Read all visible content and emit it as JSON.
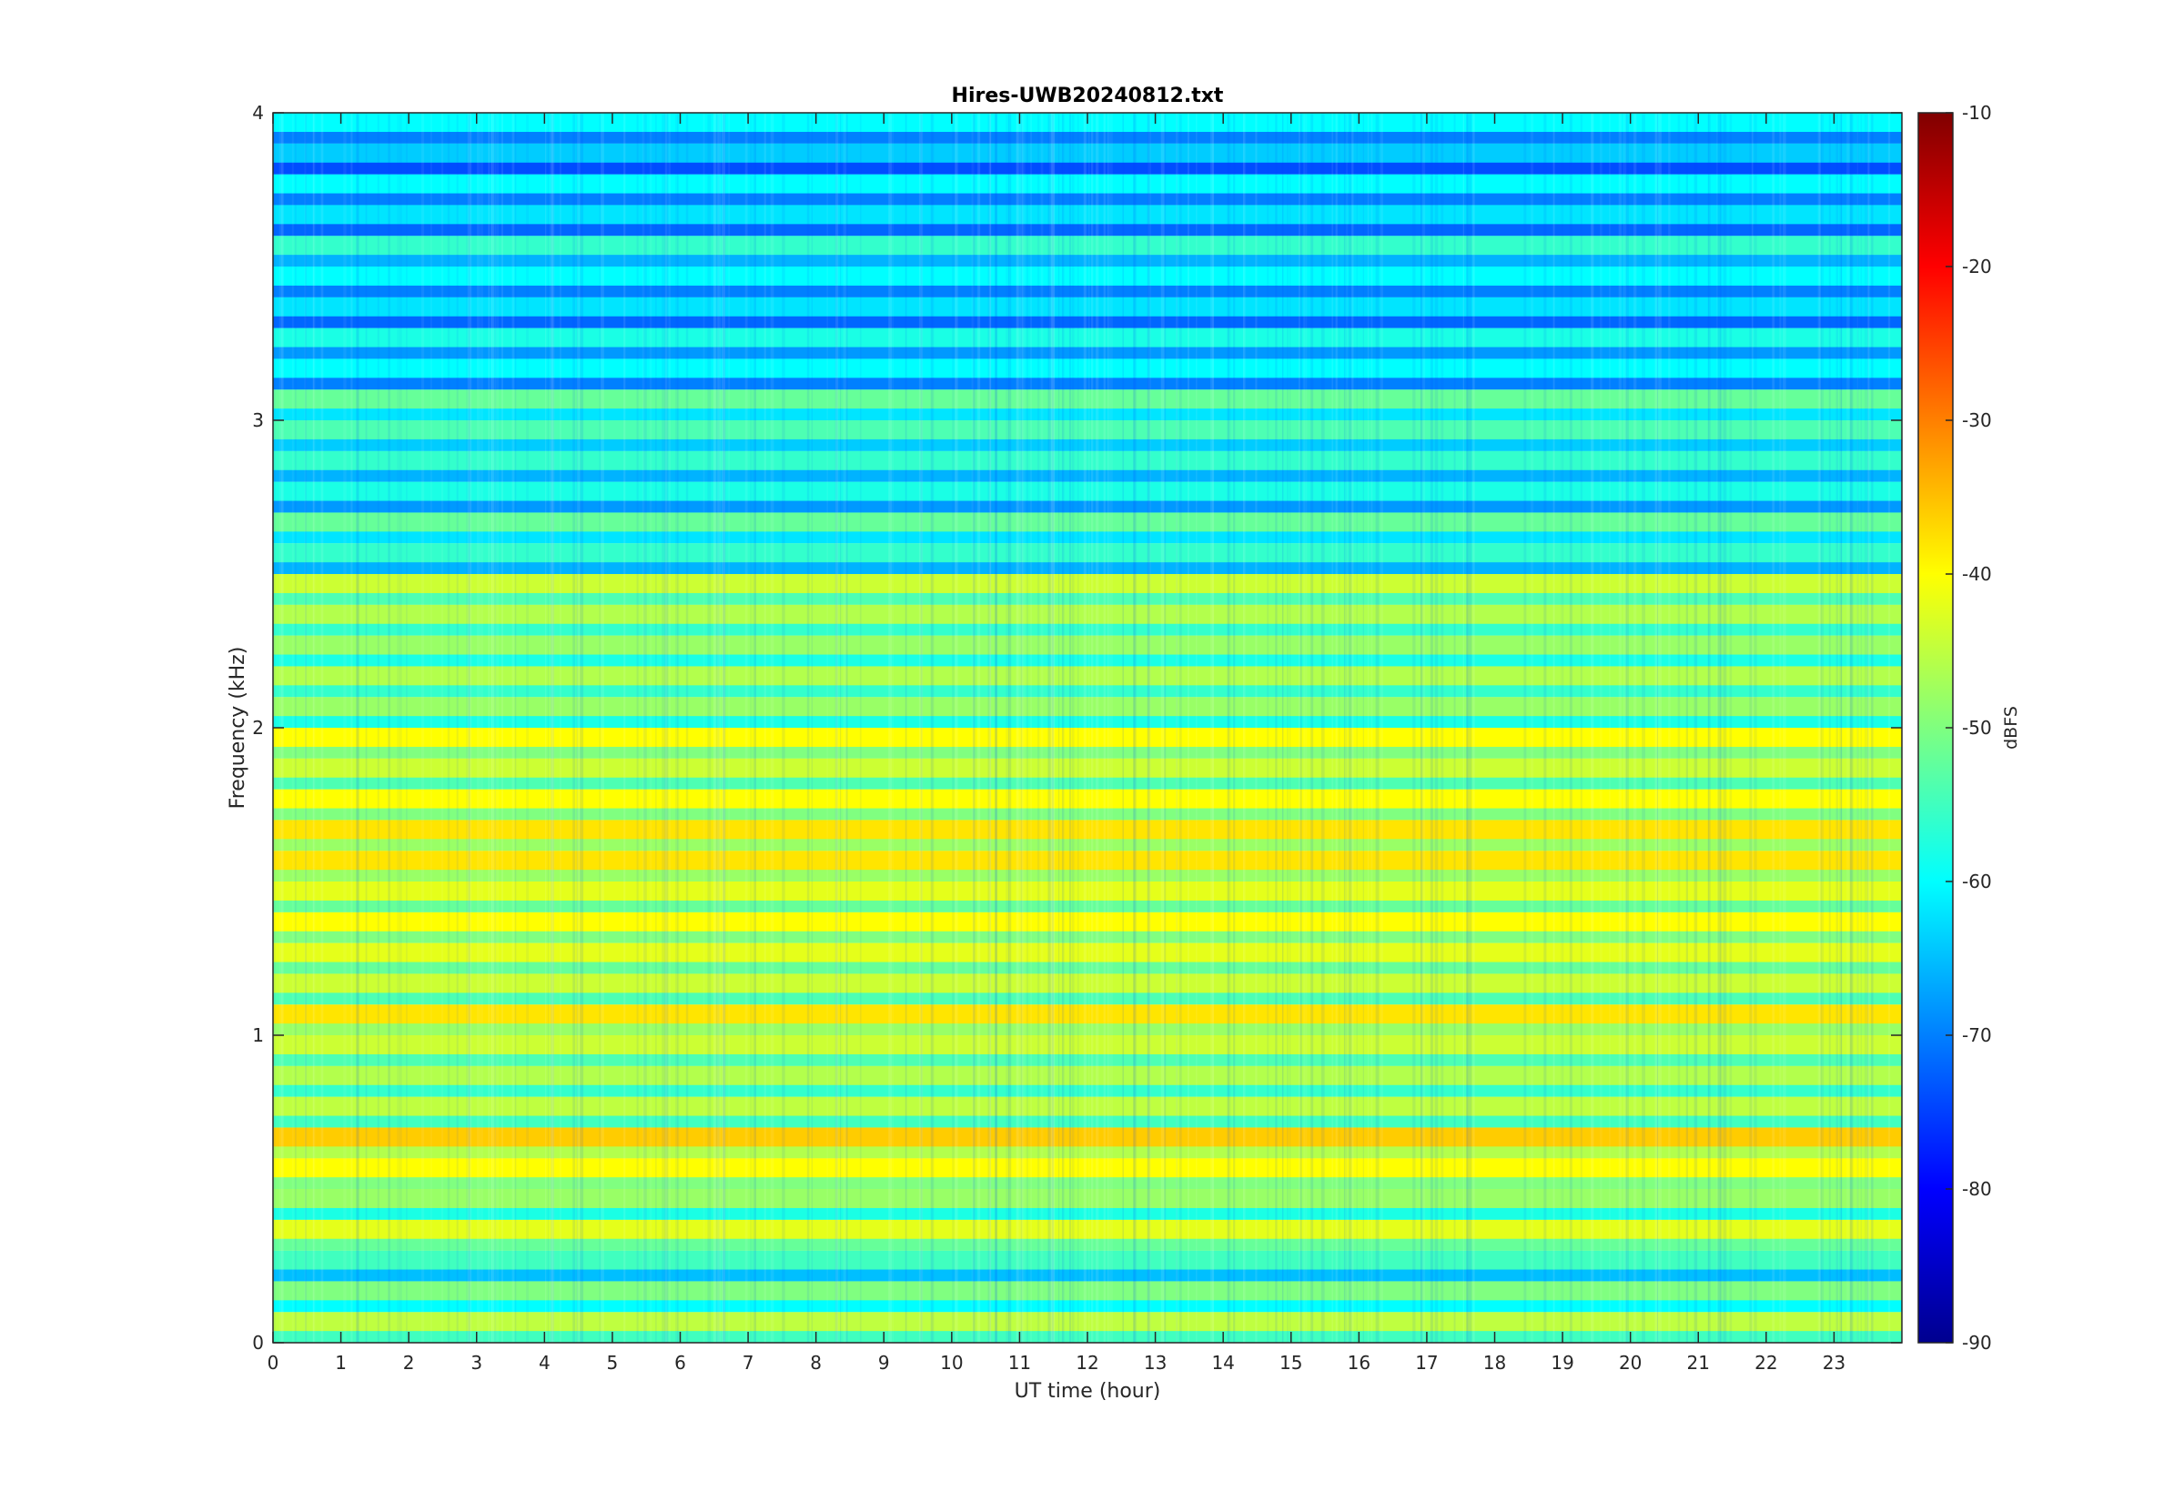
{
  "chart_data": {
    "type": "heatmap",
    "title": "Hires-UWB20240812.txt",
    "xlabel": "UT time (hour)",
    "ylabel": "Frequency (kHz)",
    "xlim": [
      0,
      24
    ],
    "ylim": [
      0,
      4
    ],
    "x_ticks": [
      "0",
      "1",
      "2",
      "3",
      "4",
      "5",
      "6",
      "7",
      "8",
      "9",
      "10",
      "11",
      "12",
      "13",
      "14",
      "15",
      "16",
      "17",
      "18",
      "19",
      "20",
      "21",
      "22",
      "23"
    ],
    "y_ticks": [
      "0",
      "1",
      "2",
      "3",
      "4"
    ],
    "colorbar": {
      "label": "dBFS",
      "range": [
        -90,
        -10
      ],
      "ticks": [
        "-90",
        "-80",
        "-70",
        "-60",
        "-50",
        "-40",
        "-30",
        "-20",
        "-10"
      ],
      "colormap": "jet"
    },
    "bands": [
      {
        "freq_khz": 0.05,
        "level_dbfs": -45
      },
      {
        "freq_khz": 0.15,
        "level_dbfs": -50
      },
      {
        "freq_khz": 0.25,
        "level_dbfs": -55
      },
      {
        "freq_khz": 0.35,
        "level_dbfs": -42
      },
      {
        "freq_khz": 0.45,
        "level_dbfs": -48
      },
      {
        "freq_khz": 0.55,
        "level_dbfs": -40
      },
      {
        "freq_khz": 0.65,
        "level_dbfs": -36
      },
      {
        "freq_khz": 0.75,
        "level_dbfs": -45
      },
      {
        "freq_khz": 0.85,
        "level_dbfs": -46
      },
      {
        "freq_khz": 0.95,
        "level_dbfs": -44
      },
      {
        "freq_khz": 1.05,
        "level_dbfs": -38
      },
      {
        "freq_khz": 1.15,
        "level_dbfs": -44
      },
      {
        "freq_khz": 1.25,
        "level_dbfs": -42
      },
      {
        "freq_khz": 1.35,
        "level_dbfs": -40
      },
      {
        "freq_khz": 1.45,
        "level_dbfs": -42
      },
      {
        "freq_khz": 1.55,
        "level_dbfs": -38
      },
      {
        "freq_khz": 1.65,
        "level_dbfs": -38
      },
      {
        "freq_khz": 1.75,
        "level_dbfs": -40
      },
      {
        "freq_khz": 1.85,
        "level_dbfs": -44
      },
      {
        "freq_khz": 1.95,
        "level_dbfs": -40
      },
      {
        "freq_khz": 2.05,
        "level_dbfs": -48
      },
      {
        "freq_khz": 2.15,
        "level_dbfs": -46
      },
      {
        "freq_khz": 2.25,
        "level_dbfs": -48
      },
      {
        "freq_khz": 2.35,
        "level_dbfs": -46
      },
      {
        "freq_khz": 2.45,
        "level_dbfs": -44
      },
      {
        "freq_khz": 2.55,
        "level_dbfs": -56
      },
      {
        "freq_khz": 2.65,
        "level_dbfs": -52
      },
      {
        "freq_khz": 2.75,
        "level_dbfs": -58
      },
      {
        "freq_khz": 2.85,
        "level_dbfs": -56
      },
      {
        "freq_khz": 2.95,
        "level_dbfs": -54
      },
      {
        "freq_khz": 3.05,
        "level_dbfs": -52
      },
      {
        "freq_khz": 3.15,
        "level_dbfs": -60
      },
      {
        "freq_khz": 3.25,
        "level_dbfs": -58
      },
      {
        "freq_khz": 3.35,
        "level_dbfs": -62
      },
      {
        "freq_khz": 3.45,
        "level_dbfs": -60
      },
      {
        "freq_khz": 3.55,
        "level_dbfs": -56
      },
      {
        "freq_khz": 3.65,
        "level_dbfs": -62
      },
      {
        "freq_khz": 3.75,
        "level_dbfs": -60
      },
      {
        "freq_khz": 3.85,
        "level_dbfs": -64
      },
      {
        "freq_khz": 3.95,
        "level_dbfs": -60
      }
    ]
  }
}
